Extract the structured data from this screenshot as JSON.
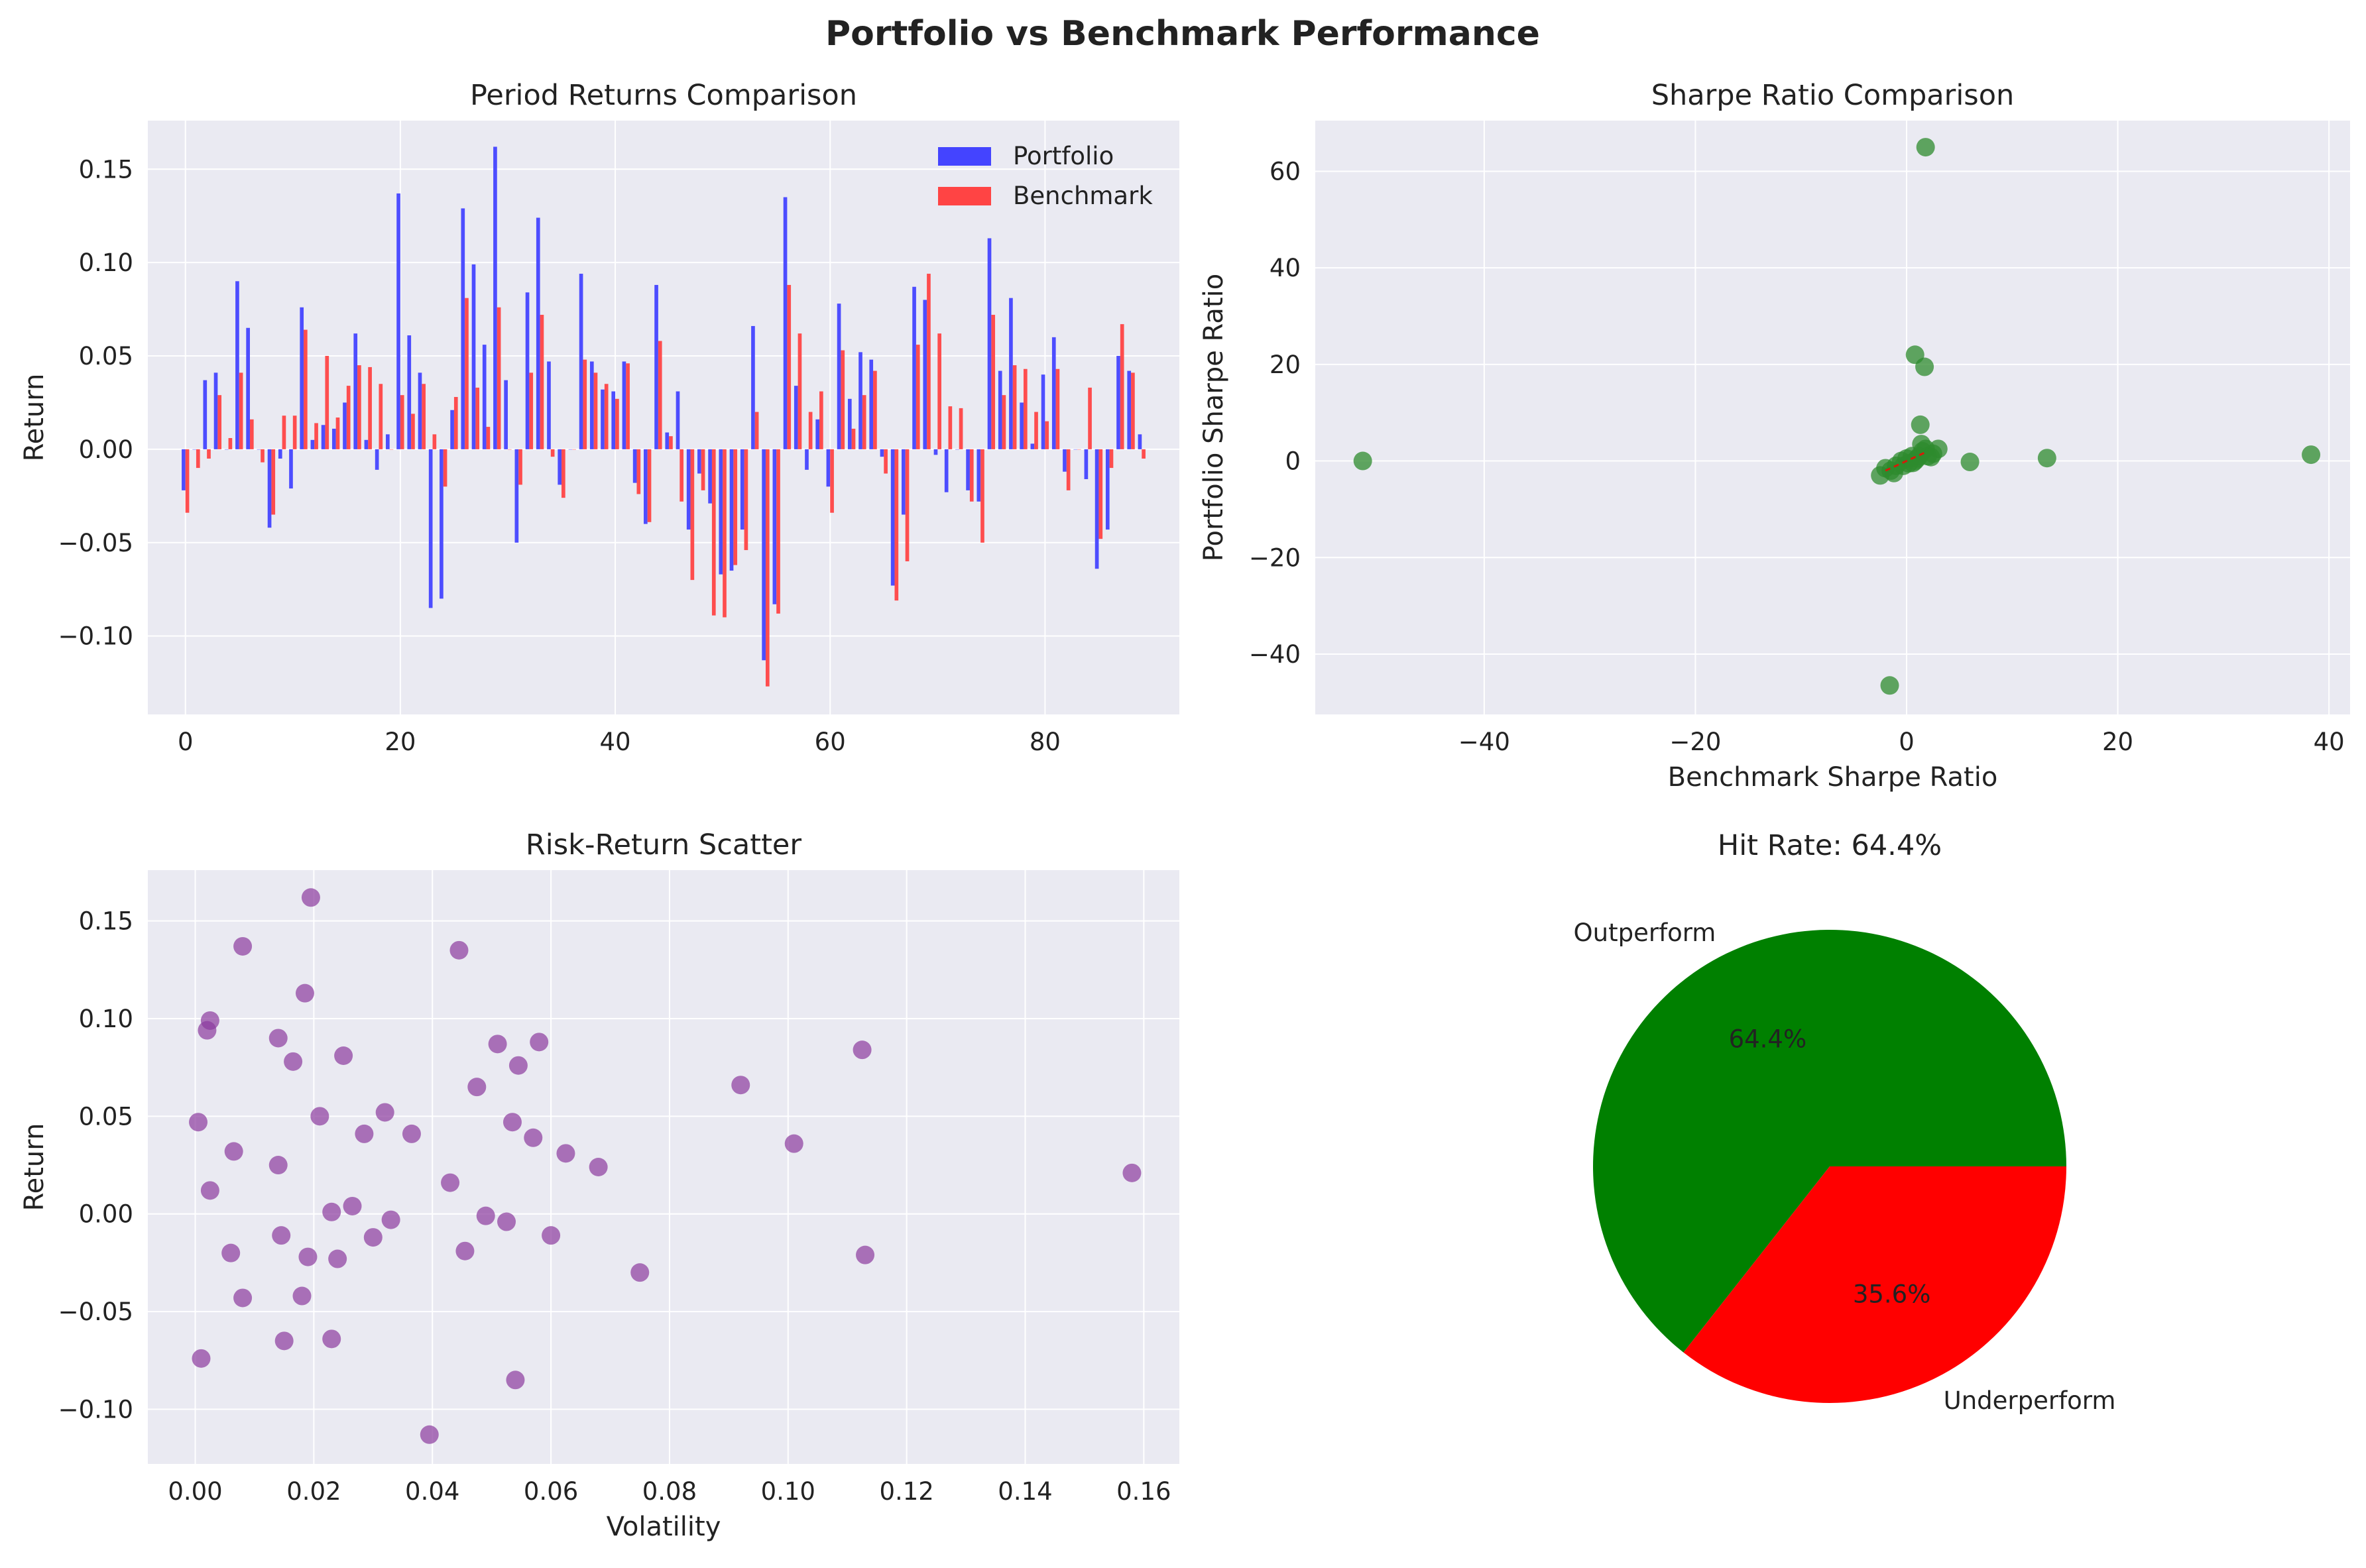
{
  "figure": {
    "title": "Portfolio vs Benchmark Performance"
  },
  "colors": {
    "axes_bg": "#eaeaf2",
    "grid": "#ffffff",
    "portfolio": "#4444ff",
    "benchmark": "#ff4444",
    "sharpe_points": "#2e8b2e",
    "scatter_points": "#8b3a9e",
    "pie_outperform": "#008000",
    "pie_underperform": "#ff0000"
  },
  "chart_data": [
    {
      "id": "period-returns",
      "type": "bar",
      "title": "Period Returns Comparison",
      "xlabel": "",
      "ylabel": "Return",
      "xlim": [
        -3.5,
        92.5
      ],
      "ylim": [
        -0.142,
        0.176
      ],
      "xticks": [
        "0",
        "20",
        "40",
        "60",
        "80"
      ],
      "xtick_values": [
        0,
        20,
        40,
        60,
        80
      ],
      "yticks": [
        "−0.10",
        "−0.05",
        "0.00",
        "0.05",
        "0.10",
        "0.15"
      ],
      "ytick_values": [
        -0.1,
        -0.05,
        0,
        0.05,
        0.1,
        0.15
      ],
      "legend": "top-right",
      "series": [
        {
          "name": "Portfolio",
          "values": [
            -0.022,
            0.0,
            0.037,
            0.041,
            0.0,
            0.09,
            0.065,
            0.0,
            -0.042,
            -0.005,
            -0.021,
            0.076,
            0.005,
            0.013,
            0.011,
            0.025,
            0.062,
            0.005,
            -0.011,
            0.008,
            0.137,
            0.061,
            0.041,
            -0.085,
            -0.08,
            0.021,
            0.129,
            0.099,
            0.056,
            0.162,
            0.037,
            -0.05,
            0.084,
            0.124,
            0.047,
            -0.019,
            0.0,
            0.094,
            0.047,
            0.032,
            0.031,
            0.047,
            -0.018,
            -0.04,
            0.088,
            0.009,
            0.031,
            -0.043,
            -0.013,
            -0.029,
            -0.067,
            -0.065,
            -0.043,
            0.066,
            -0.113,
            -0.083,
            0.135,
            0.034,
            -0.011,
            0.016,
            -0.02,
            0.078,
            0.027,
            0.052,
            0.048,
            -0.004,
            -0.073,
            -0.035,
            0.087,
            0.08,
            -0.003,
            -0.023,
            0.0,
            -0.022,
            -0.028,
            0.113,
            0.042,
            0.081,
            0.025,
            0.003,
            0.04,
            0.06,
            -0.012,
            0.0,
            -0.016,
            -0.064,
            -0.043,
            0.05,
            0.042,
            0.008
          ]
        },
        {
          "name": "Benchmark",
          "values": [
            -0.034,
            -0.01,
            -0.005,
            0.029,
            0.006,
            0.041,
            0.016,
            -0.007,
            -0.035,
            0.018,
            0.018,
            0.064,
            0.014,
            0.05,
            0.017,
            0.034,
            0.045,
            0.044,
            0.035,
            0.0,
            0.029,
            0.019,
            0.035,
            0.008,
            -0.02,
            0.028,
            0.081,
            0.033,
            0.012,
            0.076,
            0.0,
            -0.019,
            0.041,
            0.072,
            -0.004,
            -0.026,
            0.0,
            0.048,
            0.041,
            0.035,
            0.027,
            0.046,
            -0.024,
            -0.039,
            0.058,
            0.007,
            -0.028,
            -0.07,
            -0.022,
            -0.089,
            -0.09,
            -0.062,
            -0.054,
            0.02,
            -0.127,
            -0.088,
            0.088,
            0.062,
            0.02,
            0.031,
            -0.034,
            0.053,
            0.011,
            0.029,
            0.042,
            -0.013,
            -0.081,
            -0.06,
            0.056,
            0.094,
            0.062,
            0.023,
            0.022,
            -0.028,
            -0.05,
            0.072,
            0.029,
            0.045,
            0.043,
            0.02,
            0.015,
            0.043,
            -0.022,
            0.0,
            0.033,
            -0.048,
            -0.01,
            0.067,
            0.041,
            -0.005
          ]
        }
      ]
    },
    {
      "id": "sharpe-ratio",
      "type": "scatter",
      "title": "Sharpe Ratio Comparison",
      "xlabel": "Benchmark Sharpe Ratio",
      "ylabel": "Portfolio Sharpe Ratio",
      "xlim": [
        -56,
        42
      ],
      "ylim": [
        -52.5,
        70.5
      ],
      "xticks": [
        "−40",
        "−20",
        "0",
        "20",
        "40"
      ],
      "xtick_values": [
        -40,
        -20,
        0,
        20,
        40
      ],
      "yticks": [
        "−40",
        "−20",
        "0",
        "20",
        "40",
        "60"
      ],
      "ytick_values": [
        -40,
        -20,
        0,
        20,
        40,
        60
      ],
      "points": [
        [
          1.8,
          65
        ],
        [
          0.8,
          22
        ],
        [
          1.7,
          19.5
        ],
        [
          1.3,
          7.5
        ],
        [
          1.4,
          3.5
        ],
        [
          3.0,
          2.5
        ],
        [
          2.5,
          1.5
        ],
        [
          1.5,
          2.0
        ],
        [
          0.5,
          1.0
        ],
        [
          0.0,
          0.5
        ],
        [
          -0.5,
          0.0
        ],
        [
          -1.0,
          -1.0
        ],
        [
          -1.5,
          -2.0
        ],
        [
          -2.0,
          -1.5
        ],
        [
          -2.5,
          -3.0
        ],
        [
          -1.2,
          -2.5
        ],
        [
          0.8,
          0.0
        ],
        [
          1.2,
          1.0
        ],
        [
          6.0,
          -0.2
        ],
        [
          13.3,
          0.6
        ],
        [
          38.3,
          1.3
        ],
        [
          -51.5,
          0.0
        ],
        [
          -1.6,
          -46.5
        ],
        [
          0.2,
          -0.5
        ],
        [
          1.0,
          0.5
        ],
        [
          2.0,
          1.0
        ],
        [
          -0.3,
          -1.0
        ],
        [
          0.6,
          -0.4
        ],
        [
          1.8,
          2.5
        ],
        [
          2.3,
          0.8
        ]
      ],
      "diagonal": [
        [
          -2,
          -2
        ],
        [
          2,
          2
        ]
      ]
    },
    {
      "id": "risk-return",
      "type": "scatter",
      "title": "Risk-Return Scatter",
      "xlabel": "Volatility",
      "ylabel": "Return",
      "xlim": [
        -0.008,
        0.166
      ],
      "ylim": [
        -0.128,
        0.176
      ],
      "xticks": [
        "0.00",
        "0.02",
        "0.04",
        "0.06",
        "0.08",
        "0.10",
        "0.12",
        "0.14",
        "0.16"
      ],
      "xtick_values": [
        0,
        0.02,
        0.04,
        0.06,
        0.08,
        0.1,
        0.12,
        0.14,
        0.16
      ],
      "yticks": [
        "−0.10",
        "−0.05",
        "0.00",
        "0.05",
        "0.10",
        "0.15"
      ],
      "ytick_values": [
        -0.1,
        -0.05,
        0,
        0.05,
        0.1,
        0.15
      ],
      "points": [
        [
          0.0005,
          0.047
        ],
        [
          0.001,
          -0.074
        ],
        [
          0.002,
          0.094
        ],
        [
          0.0025,
          0.099
        ],
        [
          0.0025,
          0.012
        ],
        [
          0.006,
          -0.02
        ],
        [
          0.0065,
          0.032
        ],
        [
          0.008,
          0.137
        ],
        [
          0.008,
          -0.043
        ],
        [
          0.014,
          0.09
        ],
        [
          0.014,
          0.025
        ],
        [
          0.0145,
          -0.011
        ],
        [
          0.015,
          -0.065
        ],
        [
          0.0165,
          0.078
        ],
        [
          0.018,
          -0.042
        ],
        [
          0.0185,
          0.113
        ],
        [
          0.019,
          -0.022
        ],
        [
          0.0195,
          0.162
        ],
        [
          0.021,
          0.05
        ],
        [
          0.023,
          0.001
        ],
        [
          0.023,
          -0.064
        ],
        [
          0.024,
          -0.023
        ],
        [
          0.025,
          0.081
        ],
        [
          0.0265,
          0.004
        ],
        [
          0.0285,
          0.041
        ],
        [
          0.03,
          -0.012
        ],
        [
          0.032,
          0.052
        ],
        [
          0.033,
          -0.003
        ],
        [
          0.0365,
          0.041
        ],
        [
          0.0395,
          -0.113
        ],
        [
          0.043,
          0.016
        ],
        [
          0.0445,
          0.135
        ],
        [
          0.0455,
          -0.019
        ],
        [
          0.0475,
          0.065
        ],
        [
          0.049,
          -0.001
        ],
        [
          0.051,
          0.087
        ],
        [
          0.0525,
          -0.004
        ],
        [
          0.0535,
          0.047
        ],
        [
          0.054,
          -0.085
        ],
        [
          0.0545,
          0.076
        ],
        [
          0.057,
          0.039
        ],
        [
          0.058,
          0.088
        ],
        [
          0.06,
          -0.011
        ],
        [
          0.0625,
          0.031
        ],
        [
          0.068,
          0.024
        ],
        [
          0.075,
          -0.03
        ],
        [
          0.092,
          0.066
        ],
        [
          0.101,
          0.036
        ],
        [
          0.1125,
          0.084
        ],
        [
          0.113,
          -0.021
        ],
        [
          0.158,
          0.021
        ]
      ]
    },
    {
      "id": "hit-rate",
      "type": "pie",
      "title": "Hit Rate: 64.4%",
      "slices": [
        {
          "label": "Outperform",
          "value": 64.4,
          "pct_label": "64.4%"
        },
        {
          "label": "Underperform",
          "value": 35.6,
          "pct_label": "35.6%"
        }
      ]
    }
  ]
}
